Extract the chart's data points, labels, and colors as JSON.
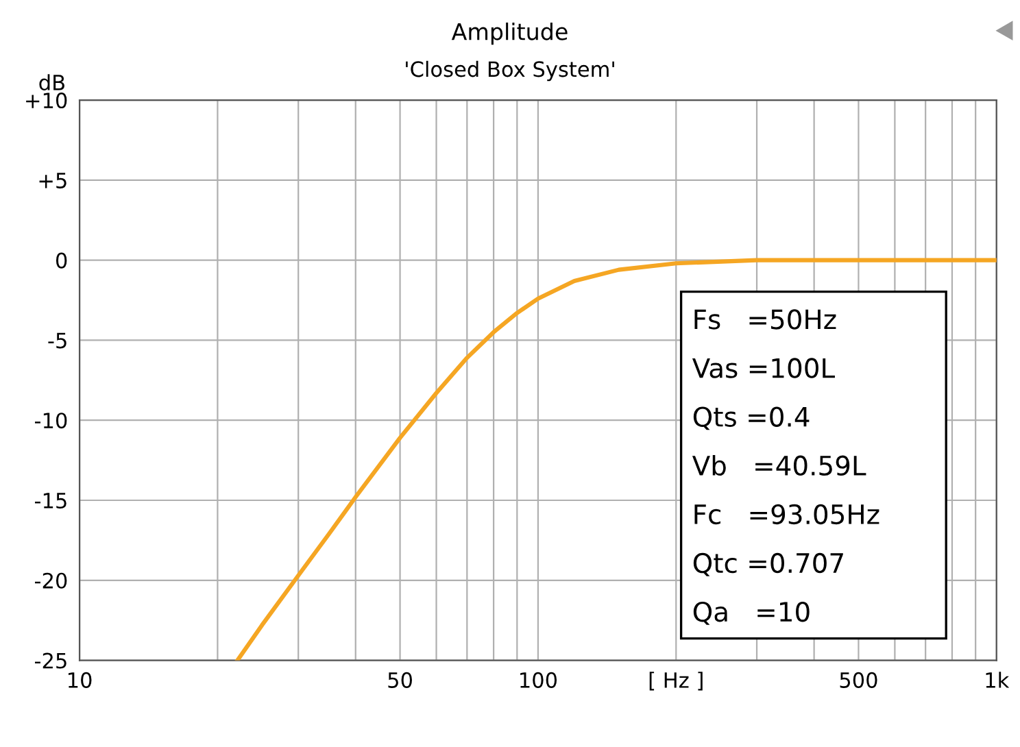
{
  "chart_data": {
    "type": "line",
    "title": "Amplitude",
    "subtitle": "'Closed Box System'",
    "ylabel": "dB",
    "x": [
      22.1,
      25,
      30,
      35,
      40,
      50,
      60,
      70,
      80,
      90,
      100,
      120,
      150,
      200,
      300,
      500,
      1000
    ],
    "series": [
      {
        "color": "#f5a623",
        "values": [
          -25,
          -22.8,
          -19.7,
          -17.1,
          -14.8,
          -11.1,
          -8.3,
          -6.1,
          -4.5,
          -3.3,
          -2.4,
          -1.3,
          -0.6,
          -0.2,
          0,
          0,
          0
        ]
      }
    ],
    "log": "x",
    "xlim": [
      10,
      1000
    ],
    "ylim": [
      -25,
      10
    ],
    "xticks": [
      10,
      {
        "value": 20,
        "label": null
      },
      {
        "value": 30,
        "label": null
      },
      {
        "value": 40,
        "label": null
      },
      50,
      {
        "value": 60,
        "label": null
      },
      {
        "value": 70,
        "label": null
      },
      {
        "value": 80,
        "label": null
      },
      {
        "value": 90,
        "label": null
      },
      100,
      {
        "value": 200,
        "label": "[ Hz ]"
      },
      {
        "value": 300,
        "label": null
      },
      {
        "value": 400,
        "label": null
      },
      500,
      {
        "value": 600,
        "label": null
      },
      {
        "value": 700,
        "label": null
      },
      {
        "value": 800,
        "label": null
      },
      {
        "value": 900,
        "label": null
      },
      {
        "value": 1000,
        "label": "1k"
      }
    ],
    "yticks": [
      {
        "value": 10,
        "label": "+10"
      },
      {
        "value": 5,
        "label": "+5"
      },
      0,
      -5,
      -10,
      -15,
      -20,
      -25
    ],
    "grid": true,
    "marker": "none",
    "line_style": "solid",
    "annotations": [
      "Fs   =50Hz",
      "Vas =100L",
      "Qts =0.4",
      "Vb   =40.59L",
      "Fc   =93.05Hz",
      "Qtc =0.707",
      "Qa   =10"
    ]
  }
}
